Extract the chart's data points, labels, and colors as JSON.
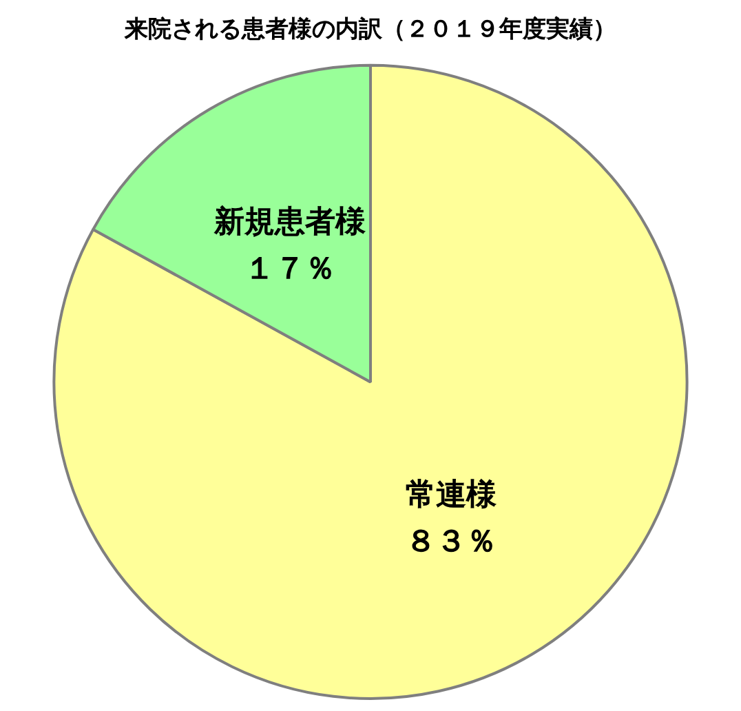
{
  "chart_data": {
    "type": "pie",
    "title": "来院される患者様の内訳（２０１９年度実績）",
    "categories": [
      "常連様",
      "新規患者様"
    ],
    "values": [
      83,
      17
    ],
    "colors": [
      "#ffff99",
      "#99ff99"
    ],
    "value_labels": [
      "８３％",
      "１７％"
    ],
    "legend": false
  }
}
